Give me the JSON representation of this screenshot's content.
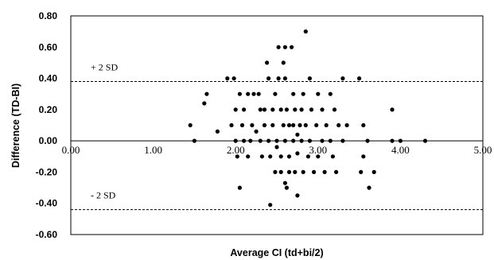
{
  "chart_data": {
    "type": "scatter",
    "xlabel": "Average CI (td+bi/2)",
    "ylabel": "Difference (TD-BI)",
    "xlim": [
      0,
      5
    ],
    "ylim": [
      -0.6,
      0.8
    ],
    "x_ticks": [
      "0.00",
      "1.00",
      "2.00",
      "3.00",
      "4.00",
      "5.00"
    ],
    "y_ticks": [
      "0.80",
      "0.60",
      "0.40",
      "0.20",
      "0.00",
      "-0.20",
      "-0.40",
      "-0.60"
    ],
    "x_tick_values": [
      0,
      1,
      2,
      3,
      4,
      5
    ],
    "y_tick_values": [
      0.8,
      0.6,
      0.4,
      0.2,
      0.0,
      -0.2,
      -0.4,
      -0.6
    ],
    "reference_lines": [
      {
        "label": "+ 2 SD",
        "y": 0.38,
        "style": "dashed"
      },
      {
        "label": "- 2 SD",
        "y": -0.44,
        "style": "dashed"
      }
    ],
    "grid": false,
    "points": [
      {
        "x": 1.45,
        "y": 0.1
      },
      {
        "x": 1.5,
        "y": 0.0
      },
      {
        "x": 1.62,
        "y": 0.24
      },
      {
        "x": 1.65,
        "y": 0.3
      },
      {
        "x": 1.78,
        "y": 0.06
      },
      {
        "x": 1.9,
        "y": 0.4
      },
      {
        "x": 1.95,
        "y": 0.1
      },
      {
        "x": 1.98,
        "y": 0.4
      },
      {
        "x": 2.0,
        "y": 0.2
      },
      {
        "x": 2.0,
        "y": 0.0
      },
      {
        "x": 2.02,
        "y": -0.1
      },
      {
        "x": 2.05,
        "y": 0.3
      },
      {
        "x": 2.05,
        "y": -0.3
      },
      {
        "x": 2.08,
        "y": 0.1
      },
      {
        "x": 2.1,
        "y": 0.2
      },
      {
        "x": 2.1,
        "y": 0.0
      },
      {
        "x": 2.15,
        "y": 0.3
      },
      {
        "x": 2.15,
        "y": -0.1
      },
      {
        "x": 2.18,
        "y": 0.0
      },
      {
        "x": 2.2,
        "y": 0.1
      },
      {
        "x": 2.22,
        "y": 0.3
      },
      {
        "x": 2.25,
        "y": 0.06
      },
      {
        "x": 2.28,
        "y": 0.3
      },
      {
        "x": 2.3,
        "y": 0.2
      },
      {
        "x": 2.3,
        "y": 0.0
      },
      {
        "x": 2.32,
        "y": -0.1
      },
      {
        "x": 2.35,
        "y": 0.2
      },
      {
        "x": 2.35,
        "y": 0.1
      },
      {
        "x": 2.38,
        "y": 0.5
      },
      {
        "x": 2.4,
        "y": 0.4
      },
      {
        "x": 2.4,
        "y": 0.0
      },
      {
        "x": 2.42,
        "y": -0.1
      },
      {
        "x": 2.42,
        "y": -0.41
      },
      {
        "x": 2.45,
        "y": 0.2
      },
      {
        "x": 2.45,
        "y": 0.1
      },
      {
        "x": 2.48,
        "y": 0.3
      },
      {
        "x": 2.48,
        "y": -0.2
      },
      {
        "x": 2.5,
        "y": 0.0
      },
      {
        "x": 2.5,
        "y": -0.04
      },
      {
        "x": 2.52,
        "y": 0.6
      },
      {
        "x": 2.52,
        "y": 0.4
      },
      {
        "x": 2.55,
        "y": 0.2
      },
      {
        "x": 2.55,
        "y": -0.1
      },
      {
        "x": 2.55,
        "y": -0.2
      },
      {
        "x": 2.58,
        "y": 0.5
      },
      {
        "x": 2.58,
        "y": 0.1
      },
      {
        "x": 2.6,
        "y": 0.6
      },
      {
        "x": 2.6,
        "y": 0.4
      },
      {
        "x": 2.6,
        "y": 0.0
      },
      {
        "x": 2.6,
        "y": -0.27
      },
      {
        "x": 2.62,
        "y": 0.2
      },
      {
        "x": 2.62,
        "y": -0.3
      },
      {
        "x": 2.65,
        "y": 0.1
      },
      {
        "x": 2.65,
        "y": -0.1
      },
      {
        "x": 2.65,
        "y": -0.2
      },
      {
        "x": 2.68,
        "y": 0.6
      },
      {
        "x": 2.7,
        "y": 0.3
      },
      {
        "x": 2.7,
        "y": 0.1
      },
      {
        "x": 2.7,
        "y": 0.0
      },
      {
        "x": 2.72,
        "y": 0.2
      },
      {
        "x": 2.72,
        "y": -0.2
      },
      {
        "x": 2.75,
        "y": 0.04
      },
      {
        "x": 2.75,
        "y": -0.08
      },
      {
        "x": 2.75,
        "y": -0.35
      },
      {
        "x": 2.78,
        "y": 0.1
      },
      {
        "x": 2.8,
        "y": 0.2
      },
      {
        "x": 2.8,
        "y": 0.0
      },
      {
        "x": 2.82,
        "y": 0.3
      },
      {
        "x": 2.82,
        "y": -0.2
      },
      {
        "x": 2.85,
        "y": 0.7
      },
      {
        "x": 2.85,
        "y": 0.1
      },
      {
        "x": 2.88,
        "y": -0.1
      },
      {
        "x": 2.9,
        "y": 0.4
      },
      {
        "x": 2.9,
        "y": 0.0
      },
      {
        "x": 2.92,
        "y": 0.2
      },
      {
        "x": 2.95,
        "y": -0.2
      },
      {
        "x": 2.98,
        "y": 0.1
      },
      {
        "x": 3.0,
        "y": 0.3
      },
      {
        "x": 3.0,
        "y": -0.1
      },
      {
        "x": 3.05,
        "y": 0.2
      },
      {
        "x": 3.05,
        "y": 0.0
      },
      {
        "x": 3.08,
        "y": -0.2
      },
      {
        "x": 3.1,
        "y": 0.1
      },
      {
        "x": 3.15,
        "y": 0.3
      },
      {
        "x": 3.15,
        "y": 0.0
      },
      {
        "x": 3.18,
        "y": -0.1
      },
      {
        "x": 3.2,
        "y": 0.2
      },
      {
        "x": 3.22,
        "y": -0.2
      },
      {
        "x": 3.25,
        "y": 0.1
      },
      {
        "x": 3.3,
        "y": 0.4
      },
      {
        "x": 3.3,
        "y": 0.0
      },
      {
        "x": 3.35,
        "y": 0.1
      },
      {
        "x": 3.5,
        "y": 0.4
      },
      {
        "x": 3.52,
        "y": -0.2
      },
      {
        "x": 3.55,
        "y": 0.1
      },
      {
        "x": 3.55,
        "y": -0.1
      },
      {
        "x": 3.6,
        "y": 0.0
      },
      {
        "x": 3.62,
        "y": -0.3
      },
      {
        "x": 3.68,
        "y": -0.2
      },
      {
        "x": 3.9,
        "y": 0.2
      },
      {
        "x": 3.9,
        "y": 0.0
      },
      {
        "x": 4.0,
        "y": 0.0
      },
      {
        "x": 4.3,
        "y": 0.0
      }
    ]
  }
}
